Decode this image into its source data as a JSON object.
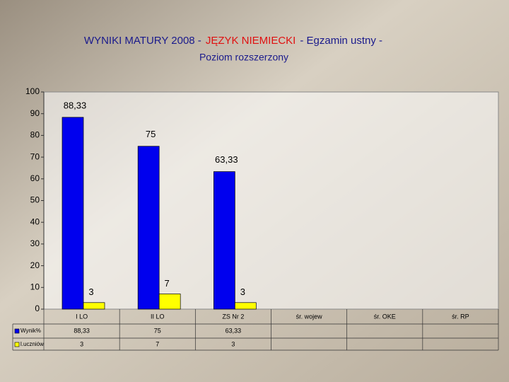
{
  "chart_data": {
    "type": "bar",
    "title": [
      "WYNIKI MATURY 2008 -",
      "JĘZYK NIEMIECKI",
      "- Egzamin ustny -"
    ],
    "title_colors": [
      "#1a1a8c",
      "#e01010",
      "#1a1a8c"
    ],
    "subtitle": "Poziom rozszerzony",
    "categories": [
      "I LO",
      "II LO",
      "ZS Nr 2",
      "śr. wojew",
      "śr. OKE",
      "śr. RP"
    ],
    "series": [
      {
        "name": "Wynik%",
        "color": "#0000ee",
        "values": [
          88.33,
          75,
          63.33,
          null,
          null,
          null
        ],
        "value_labels": [
          "88,33",
          "75",
          "63,33",
          null,
          null,
          null
        ]
      },
      {
        "name": "l.uczniów",
        "color": "#ffff00",
        "values": [
          3,
          7,
          3,
          null,
          null,
          null
        ]
      }
    ],
    "ylim": [
      0,
      100
    ],
    "yticks": [
      0,
      10,
      20,
      30,
      40,
      50,
      60,
      70,
      80,
      90,
      100
    ],
    "grid": false
  }
}
